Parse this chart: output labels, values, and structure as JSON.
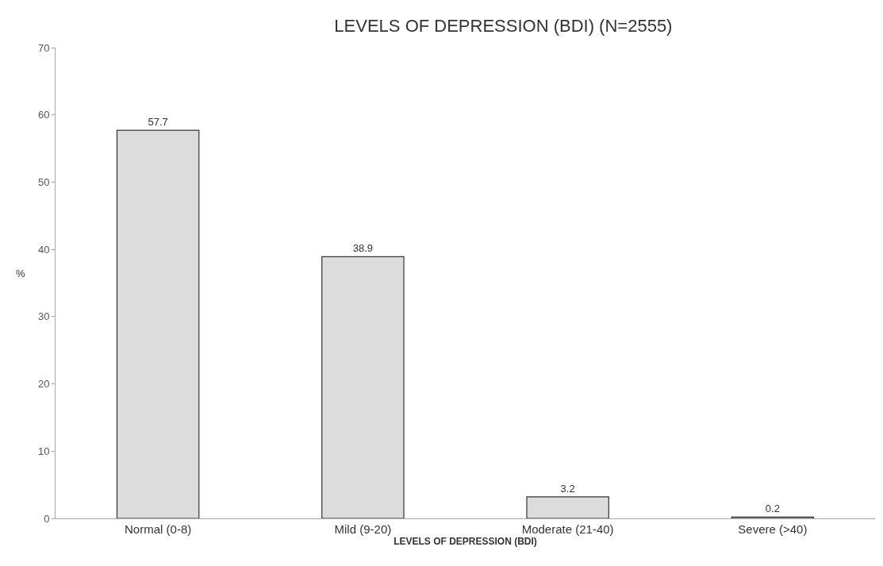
{
  "chart_data": {
    "type": "bar",
    "title": "LEVELS OF DEPRESSION (BDI) (N=2555)",
    "xlabel": "LEVELS OF DEPRESSION (BDI)",
    "ylabel": "%",
    "categories": [
      "Normal (0-8)",
      "Mild (9-20)",
      "Moderate (21-40)",
      "Severe (>40)"
    ],
    "values": [
      57.7,
      38.9,
      3.2,
      0.2
    ],
    "color": "#dcdcdc",
    "ylim": [
      0,
      70
    ],
    "yticks": [
      0,
      10,
      20,
      30,
      40,
      50,
      60,
      70
    ],
    "data_labels": true
  }
}
